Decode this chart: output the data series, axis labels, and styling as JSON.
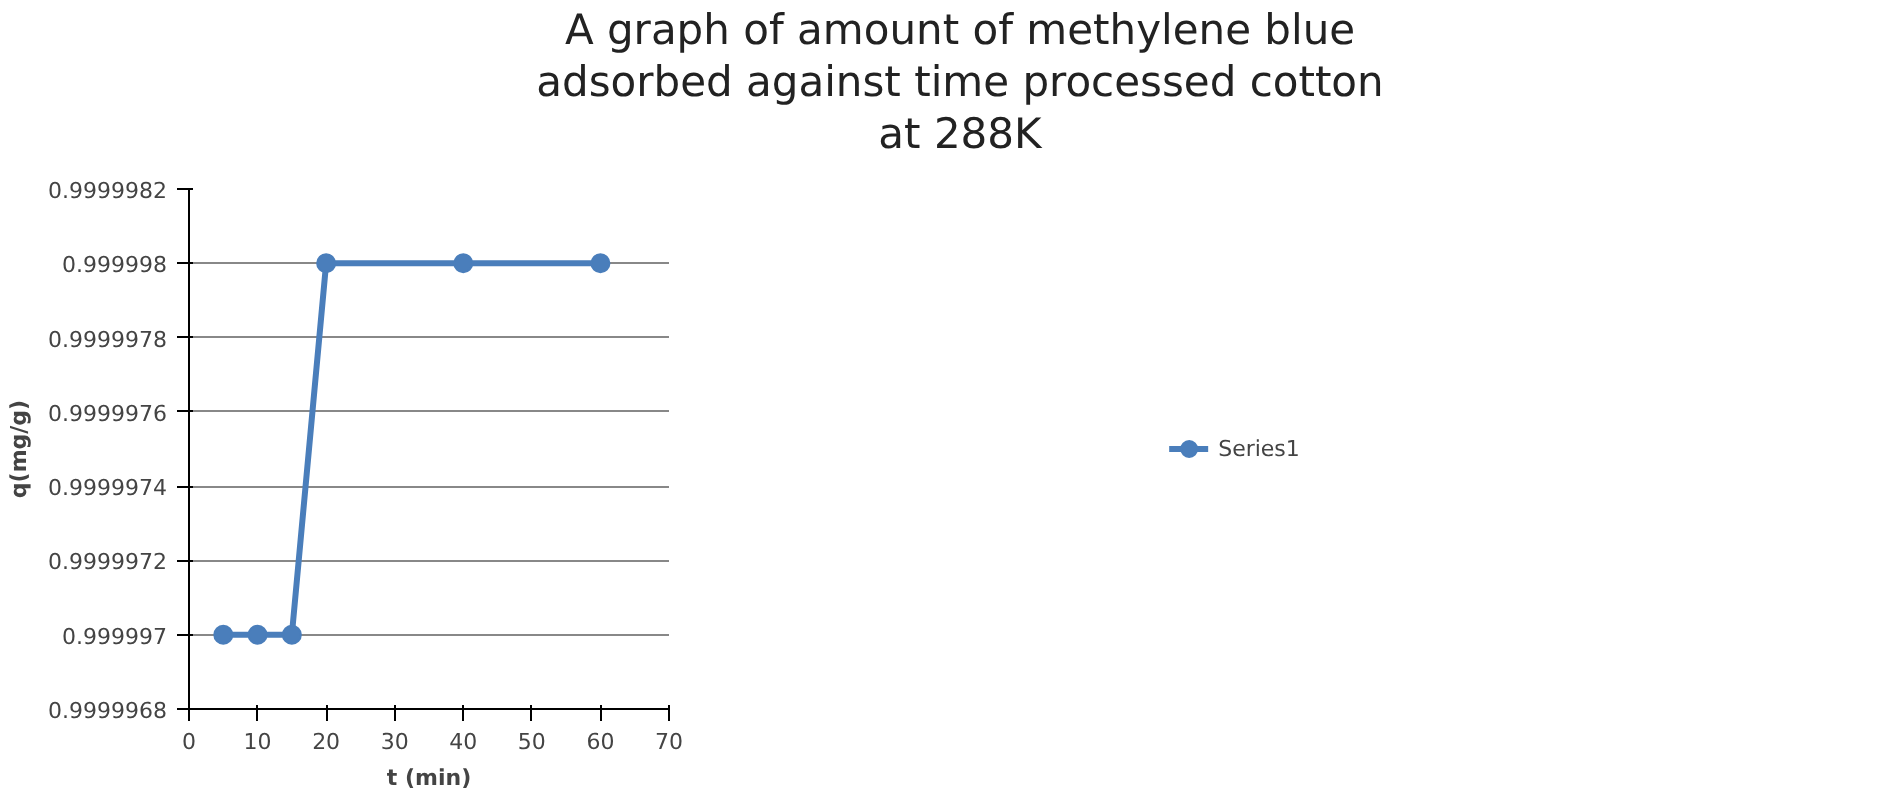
{
  "chart_data": {
    "type": "line",
    "title": "A graph of amount of methylene blue adsorbed against time processed cotton at 288K",
    "xlabel": "t (min)",
    "ylabel": "q(mg/g)",
    "x": [
      5,
      10,
      15,
      20,
      40,
      60
    ],
    "series": [
      {
        "name": "Series1",
        "color": "#4a7ebb",
        "values": [
          0.999997,
          0.999997,
          0.999997,
          0.999998,
          0.999998,
          0.999998
        ]
      }
    ],
    "xlim": [
      0,
      70
    ],
    "xticks": [
      0,
      10,
      20,
      30,
      40,
      50,
      60,
      70
    ],
    "ylim": [
      0.9999968,
      0.9999982
    ],
    "yticks": [
      {
        "value": 0.9999968,
        "label": "0.9999968"
      },
      {
        "value": 0.999997,
        "label": "0.999997"
      },
      {
        "value": 0.9999972,
        "label": "0.9999972"
      },
      {
        "value": 0.9999974,
        "label": "0.9999974"
      },
      {
        "value": 0.9999976,
        "label": "0.9999976"
      },
      {
        "value": 0.9999978,
        "label": "0.9999978"
      },
      {
        "value": 0.999998,
        "label": "0.999998"
      },
      {
        "value": 0.9999982,
        "label": "0.9999982"
      }
    ],
    "grid": "y",
    "legend": "right",
    "marker": "circle",
    "line_style": "solid"
  }
}
